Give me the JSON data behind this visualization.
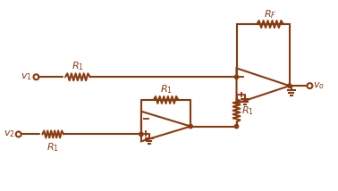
{
  "color": "#8B3A0F",
  "bg_color": "#ffffff",
  "line_width": 1.5,
  "font_size": 8
}
